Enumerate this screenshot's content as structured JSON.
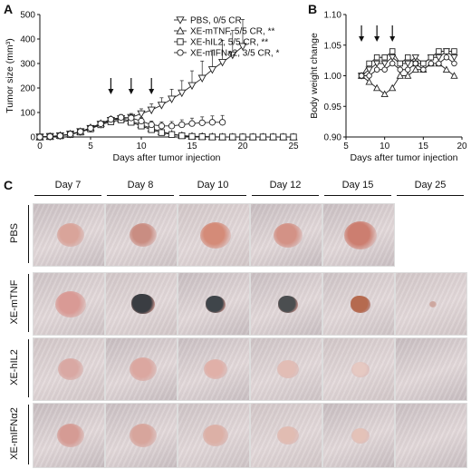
{
  "panels": {
    "a": "A",
    "b": "B",
    "c": "C"
  },
  "chart_data": [
    {
      "type": "line",
      "panel": "A",
      "xlabel": "Days after tumor injection",
      "ylabel": "Tumor size (mm³)",
      "xlim": [
        0,
        25
      ],
      "ylim": [
        0,
        500
      ],
      "xticks": [
        0,
        5,
        10,
        15,
        20,
        25
      ],
      "yticks": [
        0,
        100,
        200,
        300,
        400,
        500
      ],
      "arrows_at_days": [
        7,
        9,
        11
      ],
      "legend_position": "top-right",
      "series": [
        {
          "name": "PBS, 0/5 CR",
          "marker": "triangle-down",
          "x": [
            0,
            1,
            2,
            3,
            4,
            5,
            6,
            7,
            8,
            9,
            10,
            11,
            12,
            13,
            14,
            15,
            16,
            17,
            18,
            19,
            20
          ],
          "y": [
            0,
            2,
            5,
            12,
            22,
            35,
            52,
            68,
            75,
            80,
            95,
            110,
            130,
            155,
            180,
            210,
            240,
            275,
            305,
            335,
            370
          ],
          "err": [
            0,
            1,
            2,
            3,
            5,
            8,
            10,
            12,
            14,
            16,
            20,
            25,
            30,
            40,
            50,
            60,
            70,
            80,
            90,
            100,
            110
          ]
        },
        {
          "name": "XE-mTNF, 5/5 CR, **",
          "marker": "triangle-up",
          "x": [
            0,
            1,
            2,
            3,
            4,
            5,
            6,
            7,
            8,
            9,
            10,
            11,
            12,
            13,
            14,
            15,
            16,
            17,
            18,
            19,
            20,
            21,
            22,
            23,
            24,
            25
          ],
          "y": [
            0,
            2,
            6,
            12,
            22,
            38,
            55,
            72,
            75,
            65,
            50,
            35,
            22,
            12,
            6,
            3,
            2,
            1,
            0,
            0,
            0,
            0,
            0,
            0,
            0,
            0
          ],
          "err": [
            0,
            1,
            2,
            3,
            5,
            6,
            8,
            10,
            10,
            10,
            9,
            8,
            6,
            4,
            3,
            2,
            1,
            1,
            0,
            0,
            0,
            0,
            0,
            0,
            0,
            0
          ]
        },
        {
          "name": "XE-hIL2, 5/5 CR, **",
          "marker": "square",
          "x": [
            0,
            1,
            2,
            3,
            4,
            5,
            6,
            7,
            8,
            9,
            10,
            11,
            12,
            13,
            14,
            15,
            16,
            17,
            18,
            19,
            20,
            21,
            22,
            23,
            24,
            25
          ],
          "y": [
            0,
            2,
            5,
            10,
            20,
            33,
            50,
            62,
            70,
            60,
            45,
            30,
            18,
            10,
            5,
            2,
            1,
            0,
            0,
            0,
            0,
            0,
            0,
            0,
            0,
            0
          ],
          "err": [
            0,
            1,
            2,
            3,
            4,
            6,
            7,
            9,
            9,
            9,
            8,
            6,
            5,
            3,
            2,
            1,
            1,
            0,
            0,
            0,
            0,
            0,
            0,
            0,
            0,
            0
          ]
        },
        {
          "name": "XE-mIFNa2, 3/5 CR, *",
          "marker": "circle",
          "x": [
            0,
            1,
            2,
            3,
            4,
            5,
            6,
            7,
            8,
            9,
            10,
            11,
            12,
            13,
            14,
            15,
            16,
            17,
            18
          ],
          "y": [
            0,
            2,
            5,
            12,
            22,
            36,
            54,
            72,
            80,
            78,
            65,
            50,
            45,
            45,
            50,
            55,
            58,
            60,
            60
          ],
          "err": [
            0,
            1,
            2,
            3,
            5,
            7,
            9,
            11,
            12,
            13,
            14,
            15,
            16,
            18,
            20,
            22,
            24,
            26,
            28
          ]
        }
      ]
    },
    {
      "type": "line",
      "panel": "B",
      "xlabel": "Days after tumor injection",
      "ylabel": "Body weight change",
      "xlim": [
        5,
        20
      ],
      "ylim": [
        0.9,
        1.1
      ],
      "xticks": [
        5,
        10,
        15,
        20
      ],
      "yticks": [
        0.9,
        0.95,
        1.0,
        1.05,
        1.1
      ],
      "arrows_at_days": [
        7,
        9,
        11
      ],
      "series": [
        {
          "marker": "triangle-down",
          "x": [
            7,
            8,
            9,
            10,
            11,
            12,
            13,
            14,
            15,
            16,
            17,
            18,
            19
          ],
          "y": [
            1.0,
            1.01,
            1.02,
            1.02,
            1.03,
            1.02,
            1.02,
            1.03,
            1.02,
            1.03,
            1.03,
            1.04,
            1.03
          ]
        },
        {
          "marker": "triangle-up",
          "x": [
            7,
            8,
            9,
            10,
            11,
            12,
            13,
            14,
            15,
            16,
            17,
            18,
            19
          ],
          "y": [
            1.0,
            0.99,
            0.98,
            0.97,
            0.98,
            1.0,
            1.0,
            1.01,
            1.01,
            1.02,
            1.02,
            1.01,
            1.0
          ]
        },
        {
          "marker": "square",
          "x": [
            7,
            8,
            9,
            10,
            11,
            12,
            13,
            14,
            15,
            16,
            17,
            18,
            19
          ],
          "y": [
            1.0,
            1.02,
            1.03,
            1.03,
            1.04,
            1.02,
            1.03,
            1.02,
            1.02,
            1.03,
            1.04,
            1.04,
            1.04
          ]
        },
        {
          "marker": "circle",
          "x": [
            7,
            8,
            9,
            10,
            11,
            12,
            13,
            14,
            15,
            16,
            17,
            18,
            19
          ],
          "y": [
            1.0,
            1.0,
            1.01,
            1.01,
            1.02,
            1.01,
            1.01,
            1.02,
            1.01,
            1.02,
            1.02,
            1.03,
            1.02
          ]
        }
      ]
    }
  ],
  "panel_c": {
    "days": [
      "Day 7",
      "Day 8",
      "Day 10",
      "Day 12",
      "Day 15",
      "Day 25"
    ],
    "groups": [
      "PBS",
      "XE-mTNF",
      "XE-hIL2",
      "XE-mIFNα2"
    ]
  }
}
